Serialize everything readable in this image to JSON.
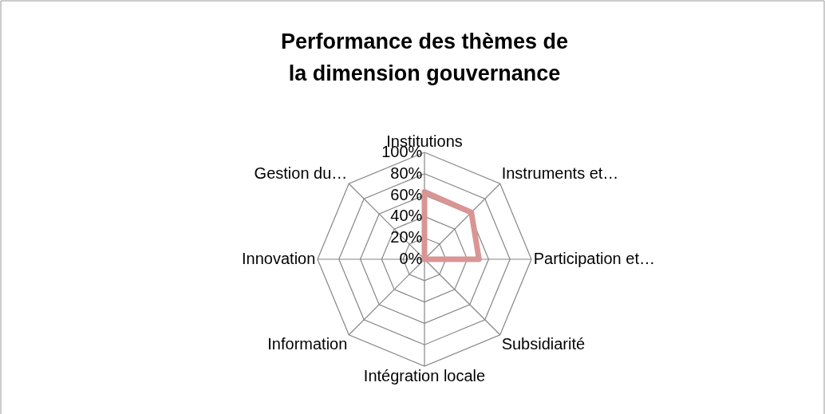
{
  "chart_data": {
    "type": "radar",
    "title": "Performance des thèmes de la dimension gouvernance",
    "categories": [
      "Institutions",
      "Instruments et…",
      "Participation et…",
      "Subsidiarité",
      "Intégration locale",
      "Information",
      "Innovation",
      "Gestion du…"
    ],
    "series": [
      {
        "color": "#d99594",
        "values": [
          63,
          62,
          51,
          0,
          0,
          0,
          0,
          0
        ]
      }
    ],
    "ylim": [
      0,
      100
    ],
    "yticks": [
      {
        "value": 0,
        "label": "0%"
      },
      {
        "value": 20,
        "label": "20%"
      },
      {
        "value": 40,
        "label": "40%"
      },
      {
        "value": 60,
        "label": "60%"
      },
      {
        "value": 80,
        "label": "80%"
      },
      {
        "value": 100,
        "label": "100%"
      }
    ],
    "grid": true
  }
}
